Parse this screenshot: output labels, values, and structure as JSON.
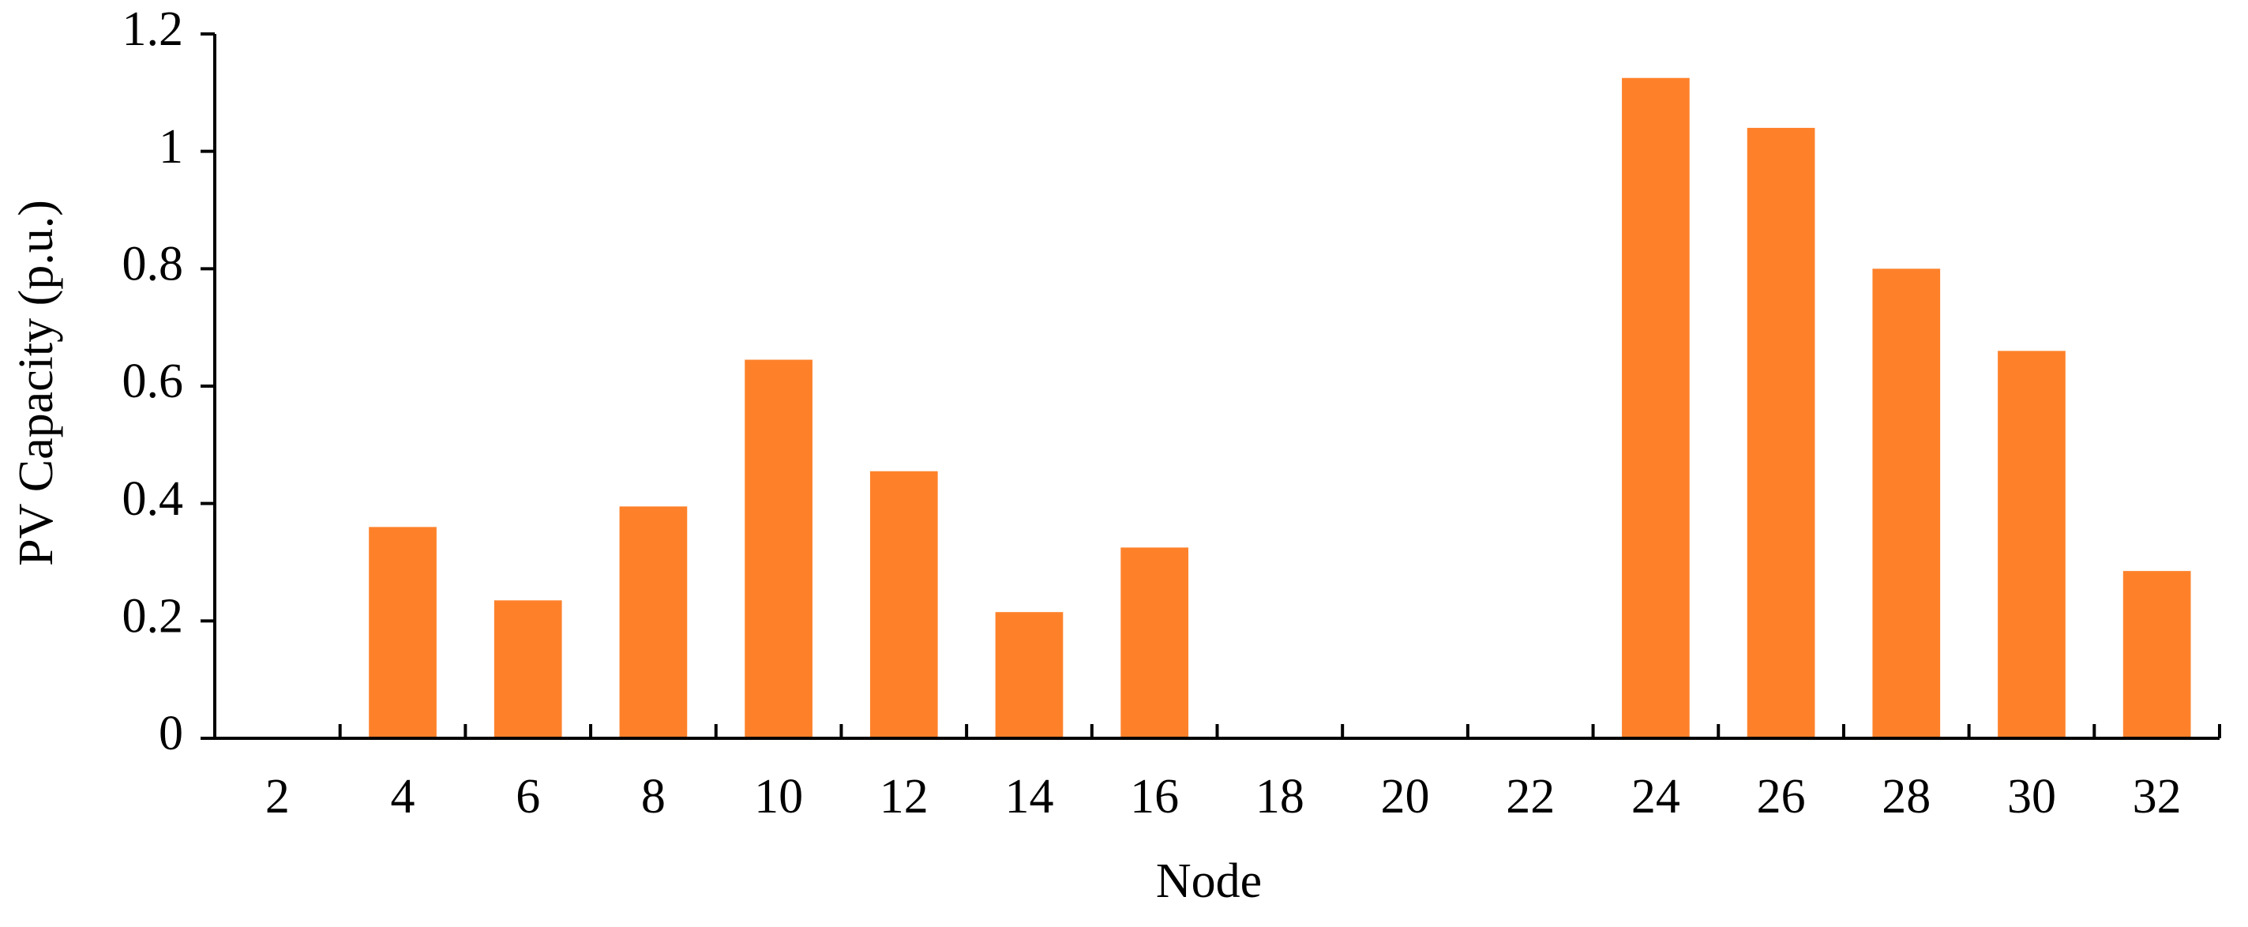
{
  "chart_data": {
    "type": "bar",
    "x_label": "Node",
    "y_label": "PV Capacity (p.u.)",
    "categories": [
      "2",
      "4",
      "6",
      "8",
      "10",
      "12",
      "14",
      "16",
      "18",
      "20",
      "22",
      "24",
      "26",
      "28",
      "30",
      "32"
    ],
    "values": [
      0,
      0.36,
      0.235,
      0.395,
      0.645,
      0.455,
      0.215,
      0.325,
      0,
      0,
      0,
      1.125,
      1.04,
      0.8,
      0.66,
      0.285
    ],
    "color": "#fe812a",
    "ylim": [
      0,
      1.2
    ],
    "yticks": [
      0,
      0.2,
      0.4,
      0.6,
      0.8,
      1,
      1.2
    ],
    "grid": false
  }
}
